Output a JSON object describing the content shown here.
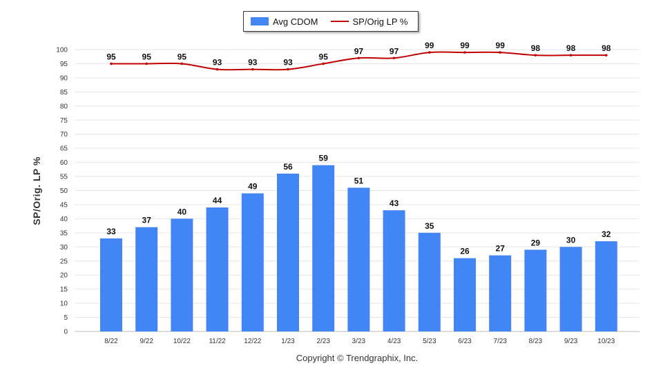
{
  "legend": {
    "bar_label": "Avg CDOM",
    "line_label": "SP/Orig LP %"
  },
  "footer": {
    "copyright": "Copyright © Trendgraphix, Inc."
  },
  "chart_data": {
    "type": "bar",
    "categories": [
      "8/22",
      "9/22",
      "10/22",
      "11/22",
      "12/22",
      "1/23",
      "2/23",
      "3/23",
      "4/23",
      "5/23",
      "6/23",
      "7/23",
      "8/23",
      "9/23",
      "10/23"
    ],
    "series": [
      {
        "name": "Avg CDOM",
        "type": "bar",
        "color": "#4285f4",
        "values": [
          33,
          37,
          40,
          44,
          49,
          56,
          59,
          51,
          43,
          35,
          26,
          27,
          29,
          30,
          32
        ]
      },
      {
        "name": "SP/Orig LP %",
        "type": "line",
        "color": "#c00000",
        "values": [
          95,
          95,
          95,
          93,
          93,
          93,
          95,
          97,
          97,
          99,
          99,
          99,
          98,
          98,
          98
        ]
      }
    ],
    "ylabel": "SP/Orig. LP %",
    "ylim": [
      0,
      100
    ],
    "yticks": [
      0,
      5,
      10,
      15,
      20,
      25,
      30,
      35,
      40,
      45,
      50,
      55,
      60,
      65,
      70,
      75,
      80,
      85,
      90,
      95,
      100
    ],
    "grid": true,
    "legend_position": "top-center"
  }
}
